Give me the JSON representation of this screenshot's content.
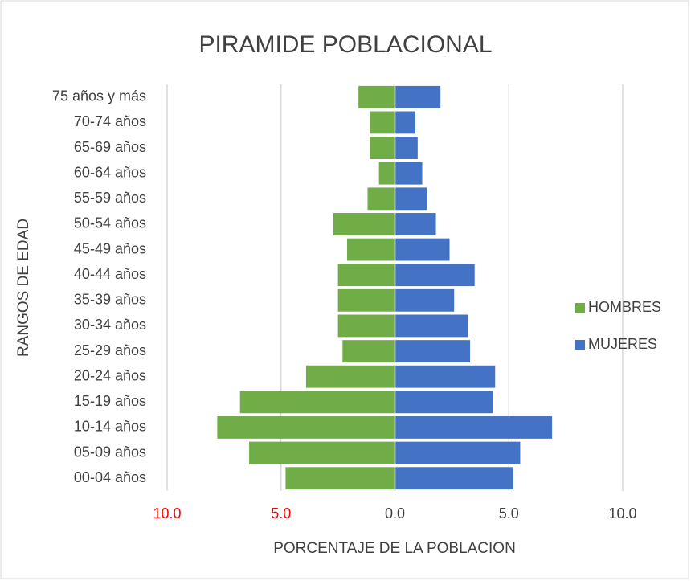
{
  "chart_data": {
    "type": "bar",
    "orientation": "horizontal",
    "title": "PIRAMIDE POBLACIONAL",
    "x_label": "PORCENTAJE DE LA POBLACION",
    "y_label": "RANGOS DE EDAD",
    "categories": [
      "00-04 años",
      "05-09 años",
      "10-14 años",
      "15-19 años",
      "20-24 años",
      "25-29 años",
      "30-34 años",
      "35-39 años",
      "40-44 años",
      "45-49 años",
      "50-54 años",
      "55-59 años",
      "60-64 años",
      "65-69 años",
      "70-74 años",
      "75 años y más"
    ],
    "series": [
      {
        "name": "HOMBRES",
        "color": "#70ad47",
        "values": [
          -4.8,
          -6.4,
          -7.8,
          -6.8,
          -3.9,
          -2.3,
          -2.5,
          -2.5,
          -2.5,
          -2.1,
          -2.7,
          -1.2,
          -0.7,
          -1.1,
          -1.1,
          -1.6
        ]
      },
      {
        "name": "MUJERES",
        "color": "#4472c4",
        "values": [
          5.2,
          5.5,
          6.9,
          4.3,
          4.4,
          3.3,
          3.2,
          2.6,
          3.5,
          2.4,
          1.8,
          1.4,
          1.2,
          1.0,
          0.9,
          2.0
        ]
      }
    ],
    "xlim": [
      -10,
      10
    ],
    "xticks": [
      {
        "value": -10,
        "label": "10.0"
      },
      {
        "value": -5,
        "label": "5.0"
      },
      {
        "value": 0,
        "label": "0.0"
      },
      {
        "value": 5,
        "label": "5.0"
      },
      {
        "value": 10,
        "label": "10.0"
      }
    ],
    "negative_tick_color": "#ff0000",
    "grid": true,
    "legend": "right"
  }
}
